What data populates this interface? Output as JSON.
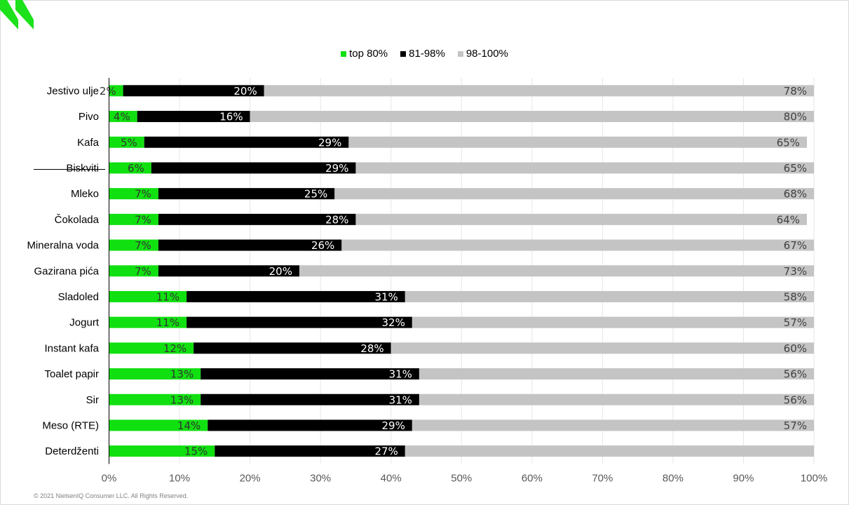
{
  "colors": {
    "top80": "#11e010",
    "mid": "#000000",
    "rest": "#c4c4c4",
    "grid": "#e6e6e6",
    "axis": "#000000",
    "brand": "#1ce11b"
  },
  "legend": [
    {
      "label": "top 80%",
      "color": "#11e010"
    },
    {
      "label": "81-98%",
      "color": "#000000"
    },
    {
      "label": "98-100%",
      "color": "#c4c4c4"
    }
  ],
  "footer": "© 2021 NielsenIQ Consumer LLC. All Rights Reserved.",
  "chart_data": {
    "type": "bar",
    "orientation": "horizontal",
    "stacked": true,
    "title": "",
    "xlabel": "",
    "ylabel": "",
    "xlim": [
      0,
      100
    ],
    "x_ticks": [
      "0%",
      "10%",
      "20%",
      "30%",
      "40%",
      "50%",
      "60%",
      "70%",
      "80%",
      "90%",
      "100%"
    ],
    "grid": true,
    "legend_position": "top",
    "categories": [
      "Jestivo ulje",
      "Pivo",
      "Kafa",
      "Biskviti",
      "Mleko",
      "Čokolada",
      "Mineralna voda",
      "Gazirana pića",
      "Sladoled",
      "Jogurt",
      "Instant kafa",
      "Toalet papir",
      "Sir",
      "Meso (RTE)",
      "Deterdženti"
    ],
    "series": [
      {
        "name": "top 80%",
        "values": [
          2,
          4,
          5,
          6,
          7,
          7,
          7,
          7,
          11,
          11,
          12,
          13,
          13,
          14,
          15
        ],
        "labels": [
          "2%",
          "4%",
          "5%",
          "6%",
          "7%",
          "7%",
          "7%",
          "7%",
          "11%",
          "11%",
          "12%",
          "13%",
          "13%",
          "14%",
          "15%"
        ]
      },
      {
        "name": "81-98%",
        "values": [
          20,
          16,
          29,
          29,
          25,
          28,
          26,
          20,
          31,
          32,
          28,
          31,
          31,
          29,
          27
        ],
        "labels": [
          "20%",
          "16%",
          "29%",
          "29%",
          "25%",
          "28%",
          "26%",
          "20%",
          "31%",
          "32%",
          "28%",
          "31%",
          "31%",
          "29%",
          "27%"
        ]
      },
      {
        "name": "98-100%",
        "values": [
          78,
          80,
          65,
          65,
          68,
          64,
          67,
          73,
          58,
          57,
          60,
          56,
          56,
          57,
          58
        ],
        "labels": [
          "78%",
          "80%",
          "65%",
          "65%",
          "68%",
          "64%",
          "67%",
          "73%",
          "58%",
          "57%",
          "60%",
          "56%",
          "56%",
          "57%",
          ""
        ]
      }
    ]
  }
}
